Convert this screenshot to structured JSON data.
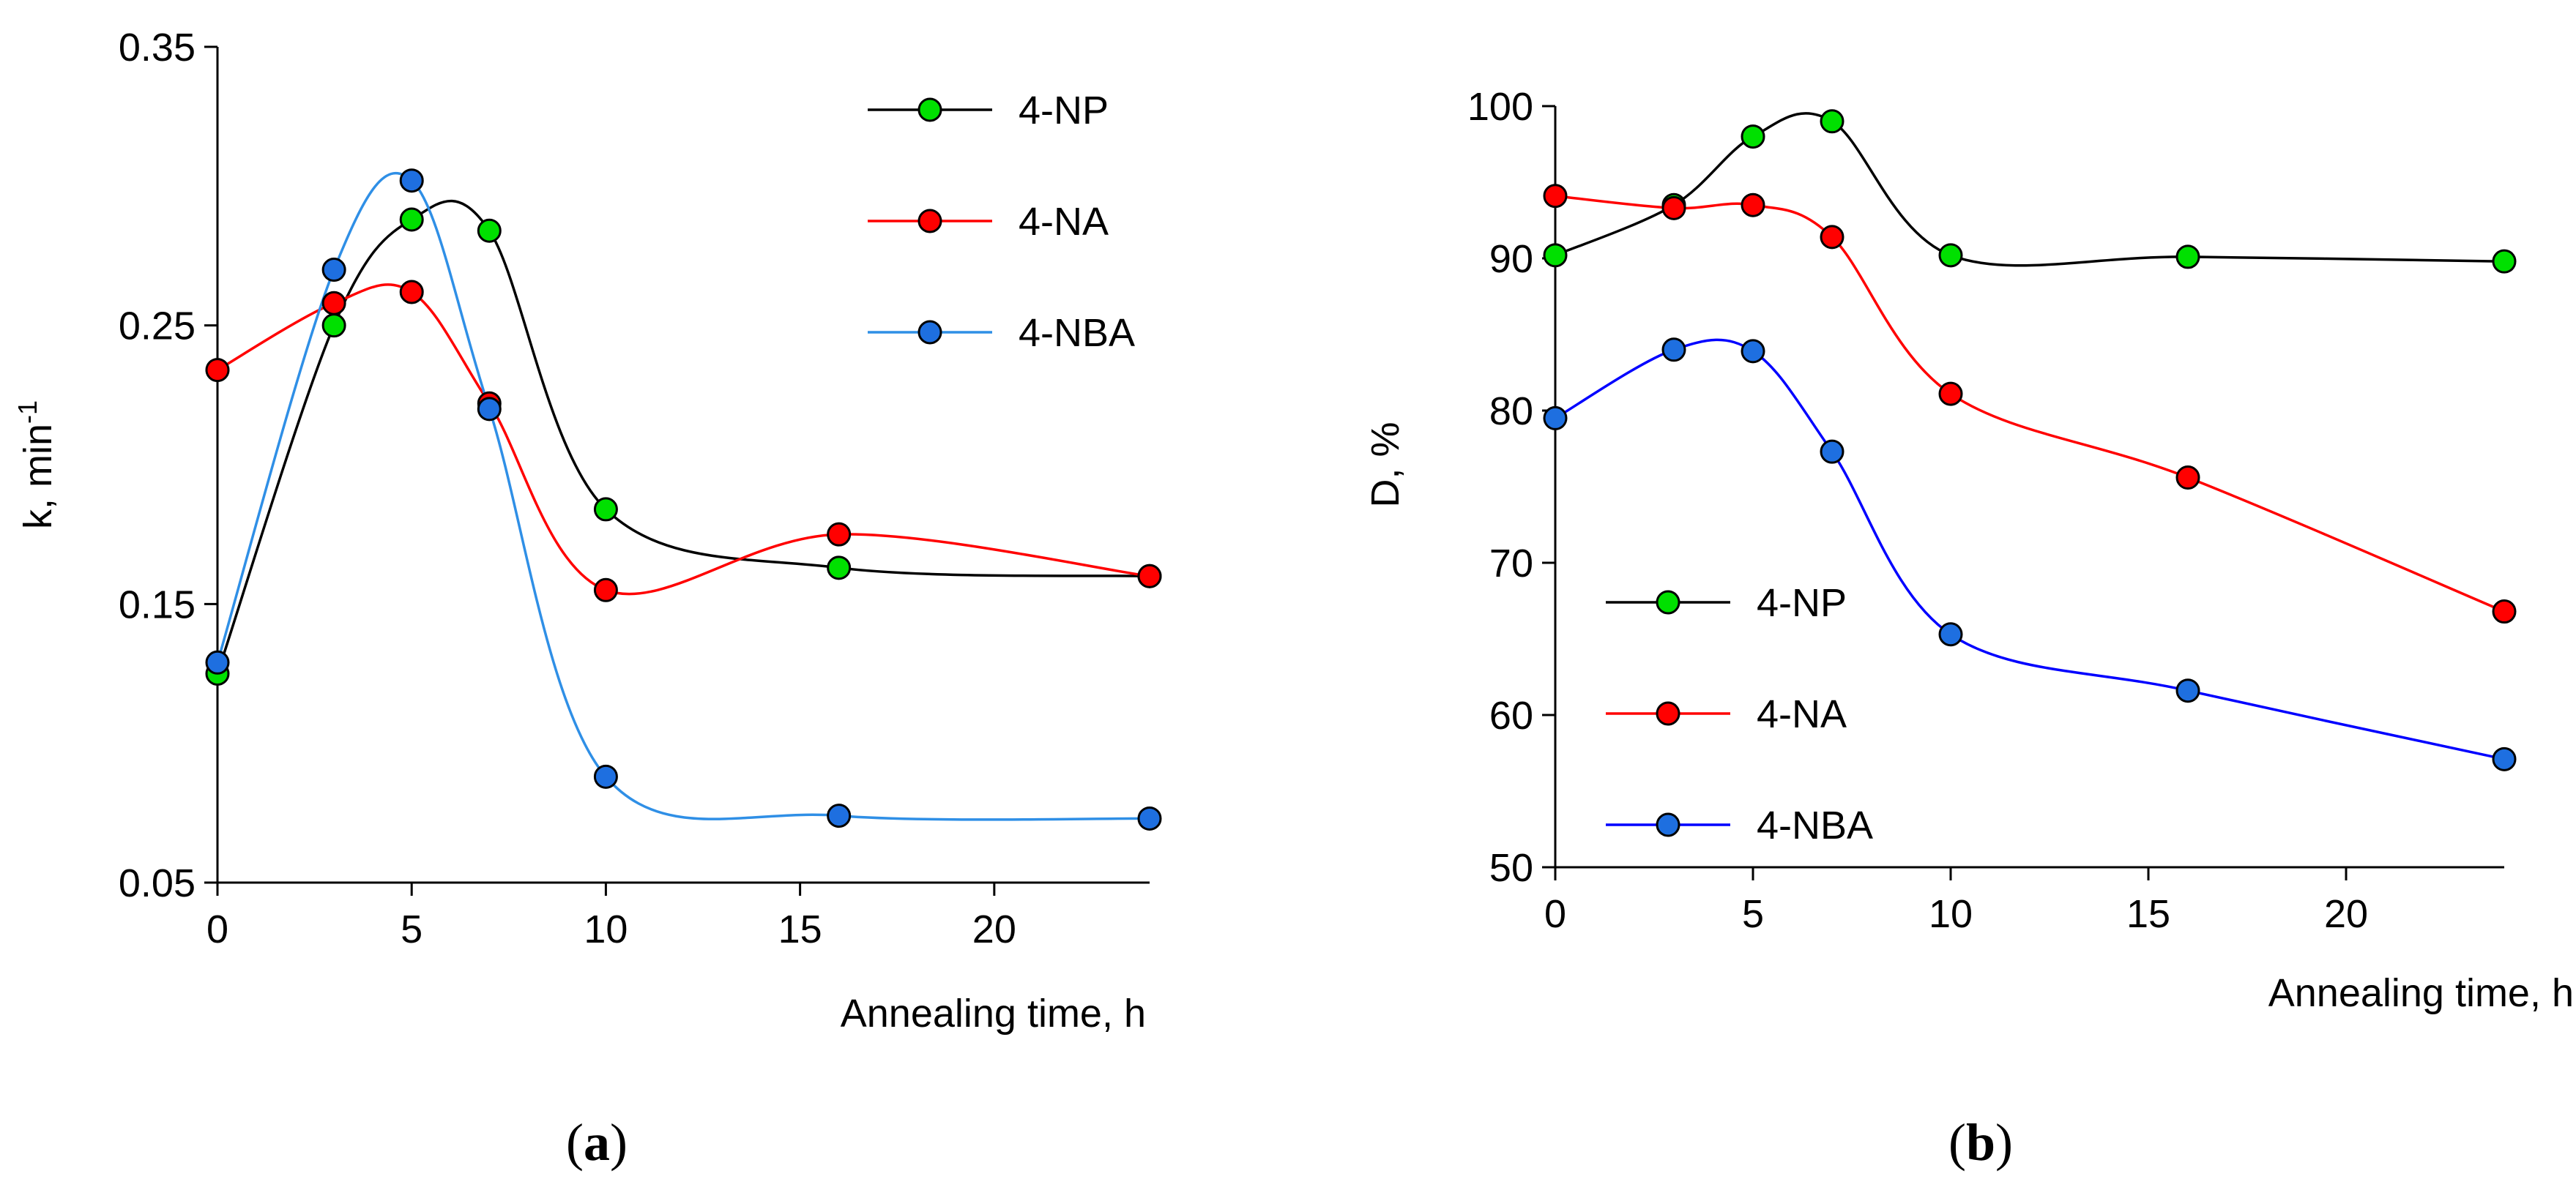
{
  "chart_data": [
    {
      "type": "line",
      "panel": "a",
      "caption_letter": "a",
      "title": "",
      "xlabel": "Annealing time, h",
      "ylabel": "k, min",
      "ylabel_sup": "-1",
      "xlim": [
        0,
        24
      ],
      "ylim": [
        0.05,
        0.35
      ],
      "xticks": [
        0,
        5,
        10,
        15,
        20
      ],
      "xtick_labels": [
        "0",
        "5",
        "10",
        "15",
        "20"
      ],
      "yticks": [
        0.05,
        0.15,
        0.25,
        0.35
      ],
      "ytick_labels": [
        "0.05",
        "0.15",
        "0.25",
        "0.35"
      ],
      "grid": false,
      "legend_position": "top-right",
      "x": [
        0,
        3,
        5,
        7,
        10,
        16,
        24
      ],
      "series": [
        {
          "name": "4-NP",
          "color": "#00e000",
          "line_color": "#000000",
          "values": [
            0.125,
            0.25,
            0.288,
            0.284,
            0.184,
            0.163,
            0.16
          ]
        },
        {
          "name": "4-NA",
          "color": "#ff0000",
          "line_color": "#ff0000",
          "values": [
            0.234,
            0.258,
            0.262,
            0.222,
            0.155,
            0.175,
            0.16
          ]
        },
        {
          "name": "4-NBA",
          "color": "#1e6fe0",
          "line_color": "#2f8fe6",
          "values": [
            0.129,
            0.27,
            0.302,
            0.22,
            0.088,
            0.074,
            0.073
          ]
        }
      ]
    },
    {
      "type": "line",
      "panel": "b",
      "caption_letter": "b",
      "title": "",
      "xlabel": "Annealing time, h",
      "ylabel": "D, %",
      "xlim": [
        0,
        24
      ],
      "ylim": [
        50,
        100
      ],
      "xticks": [
        0,
        5,
        10,
        15,
        20
      ],
      "xtick_labels": [
        "0",
        "5",
        "10",
        "15",
        "20"
      ],
      "yticks": [
        50,
        60,
        70,
        80,
        90,
        100
      ],
      "ytick_labels": [
        "50",
        "60",
        "70",
        "80",
        "90",
        "100"
      ],
      "grid": false,
      "legend_position": "bottom-left",
      "x": [
        0,
        3,
        5,
        7,
        10,
        16,
        24
      ],
      "series": [
        {
          "name": "4-NP",
          "color": "#00e000",
          "line_color": "#000000",
          "values": [
            90.2,
            93.5,
            98.0,
            99.0,
            90.2,
            90.1,
            89.8
          ]
        },
        {
          "name": "4-NA",
          "color": "#ff0000",
          "line_color": "#ff0000",
          "values": [
            94.1,
            93.3,
            93.5,
            91.4,
            81.1,
            75.6,
            66.8
          ]
        },
        {
          "name": "4-NBA",
          "color": "#1e6fe0",
          "line_color": "#0000ff",
          "values": [
            79.5,
            84.0,
            83.9,
            77.3,
            65.3,
            61.6,
            57.1
          ]
        }
      ]
    }
  ]
}
